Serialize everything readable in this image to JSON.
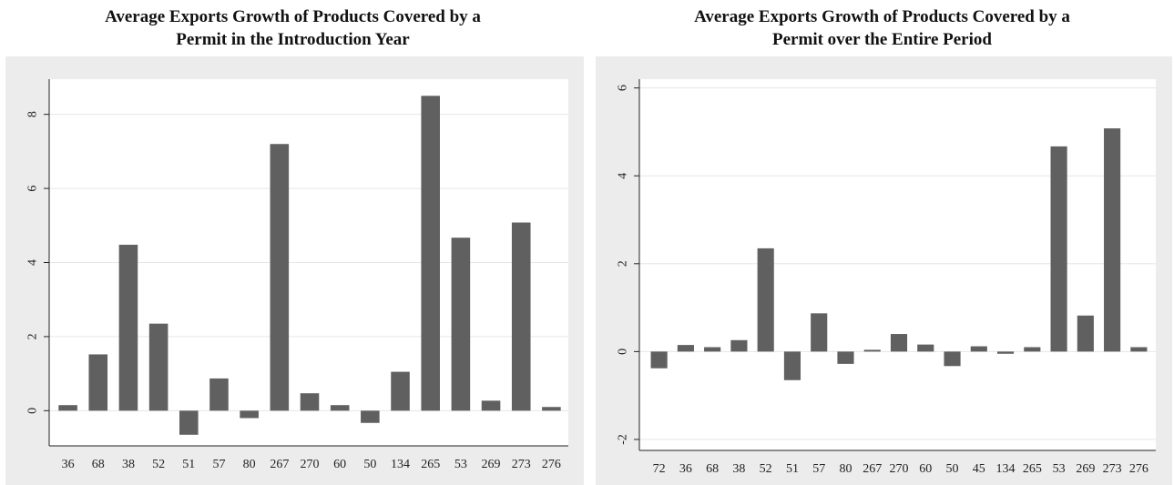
{
  "charts": [
    {
      "title": "Average Exports Growth of Products Covered by a\nPermit in the Introduction Year",
      "bar_color": "#606060"
    },
    {
      "title": "Average Exports Growth of Products Covered by a\nPermit over the Entire Period",
      "bar_color": "#606060"
    }
  ],
  "chart_data": [
    {
      "type": "bar",
      "title": "Average Exports Growth of Products Covered by a Permit in the Introduction Year",
      "xlabel": "",
      "ylabel": "",
      "categories": [
        "36",
        "68",
        "38",
        "52",
        "51",
        "57",
        "80",
        "267",
        "270",
        "60",
        "50",
        "134",
        "265",
        "53",
        "269",
        "273",
        "276"
      ],
      "values": [
        0.15,
        1.52,
        4.48,
        2.35,
        -0.65,
        0.87,
        -0.2,
        7.2,
        0.47,
        0.15,
        -0.33,
        1.05,
        8.5,
        4.67,
        0.27,
        5.08,
        0.1
      ],
      "yticks": [
        0,
        2,
        4,
        6,
        8
      ],
      "ylim": [
        -0.95,
        8.95
      ],
      "grid": true,
      "legend": "none"
    },
    {
      "type": "bar",
      "title": "Average Exports Growth of Products Covered by a Permit over the Entire Period",
      "xlabel": "",
      "ylabel": "",
      "categories": [
        "72",
        "36",
        "68",
        "38",
        "52",
        "51",
        "57",
        "80",
        "267",
        "270",
        "60",
        "50",
        "45",
        "134",
        "265",
        "53",
        "269",
        "273",
        "276"
      ],
      "values": [
        -0.38,
        0.15,
        0.1,
        0.26,
        2.35,
        -0.65,
        0.87,
        -0.28,
        0.04,
        0.4,
        0.16,
        -0.33,
        0.12,
        -0.05,
        0.1,
        4.67,
        0.82,
        5.08,
        0.1
      ],
      "yticks": [
        -2,
        0,
        2,
        4,
        6
      ],
      "ylim": [
        -2.25,
        6.2
      ],
      "grid": true,
      "legend": "none"
    }
  ]
}
